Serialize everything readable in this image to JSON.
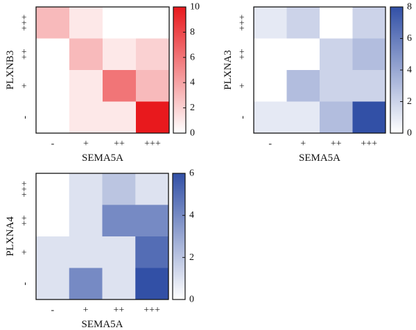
{
  "chart_data": [
    {
      "type": "heatmap",
      "id": "plxnb3",
      "xlabel": "SEMA5A",
      "ylabel": "PLXNB3",
      "x_categories": [
        "-",
        "+",
        "++",
        "+++"
      ],
      "y_categories": [
        "+++",
        "++",
        "+",
        "-"
      ],
      "values": [
        [
          3,
          1,
          0,
          0
        ],
        [
          0,
          3,
          1,
          2
        ],
        [
          0,
          1,
          6,
          3
        ],
        [
          0,
          1,
          1,
          10
        ]
      ],
      "colorbar": {
        "min": 0,
        "max": 10,
        "ticks": [
          "0",
          "2",
          "4",
          "6",
          "8",
          "10"
        ],
        "low_color": "#ffffff",
        "high_color": "#e8191d"
      }
    },
    {
      "type": "heatmap",
      "id": "plxna3",
      "xlabel": "SEMA5A",
      "ylabel": "PLXNA3",
      "x_categories": [
        "-",
        "+",
        "++",
        "+++"
      ],
      "y_categories": [
        "+++",
        "++",
        "+",
        "-"
      ],
      "values": [
        [
          1,
          2,
          0,
          2
        ],
        [
          0,
          0,
          2,
          3
        ],
        [
          0,
          3,
          2,
          2
        ],
        [
          1,
          1,
          3,
          8
        ]
      ],
      "colorbar": {
        "min": 0,
        "max": 8,
        "ticks": [
          "0",
          "2",
          "4",
          "6",
          "8"
        ],
        "low_color": "#ffffff",
        "high_color": "#3250a6"
      }
    },
    {
      "type": "heatmap",
      "id": "plxna4",
      "xlabel": "SEMA5A",
      "ylabel": "PLXNA4",
      "x_categories": [
        "-",
        "+",
        "++",
        "+++"
      ],
      "y_categories": [
        "+++",
        "++",
        "+",
        "-"
      ],
      "values": [
        [
          0,
          1,
          2,
          1
        ],
        [
          0,
          1,
          4,
          4
        ],
        [
          1,
          1,
          1,
          5
        ],
        [
          1,
          4,
          1,
          6
        ]
      ],
      "colorbar": {
        "min": 0,
        "max": 6,
        "ticks": [
          "0",
          "2",
          "4",
          "6"
        ],
        "low_color": "#ffffff",
        "high_color": "#3250a6"
      }
    }
  ]
}
